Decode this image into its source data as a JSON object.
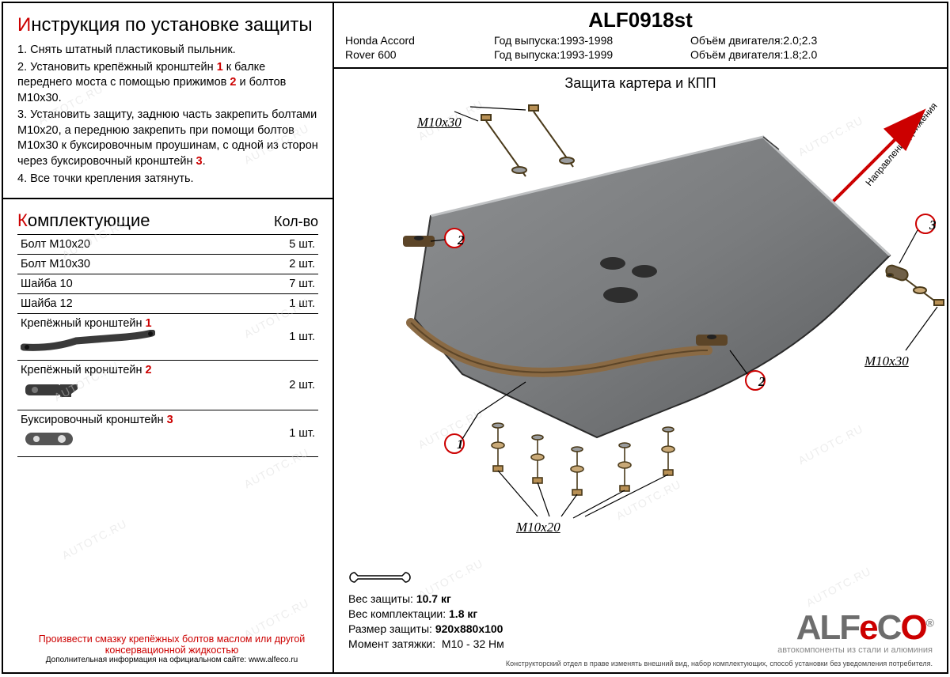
{
  "colors": {
    "accent": "#c00",
    "steel": "#7c7e80",
    "steel_dark": "#5d5f61",
    "bronze": "#8a6a44",
    "border": "#000",
    "watermark": "#d8d8d8",
    "logo_grey": "#6d6d6d",
    "logo_red": "#cc0000"
  },
  "watermark_text": "AUTOTC.RU",
  "instructions": {
    "title_cap": "И",
    "title_rest": "нструкция по установке защиты",
    "steps": [
      {
        "n": "1.",
        "text": "Снять штатный пластиковый пыльник."
      },
      {
        "n": "2.",
        "text": "Установить крепёжный кронштейн {1} к балке переднего моста с помощью прижимов {2} и болтов М10х30."
      },
      {
        "n": "3.",
        "text": "Установить защиту, заднюю часть закрепить болтами М10х20, а переднюю закрепить при помощи болтов М10х30 к буксировочным проушинам, с одной из сторон через буксировочный кронштейн {3}."
      },
      {
        "n": "4.",
        "text": "Все точки крепления затянуть."
      }
    ]
  },
  "parts": {
    "title_cap": "К",
    "title_rest": "омплектующие",
    "qty_header": "Кол-во",
    "rows": [
      {
        "name": "Болт М10х20",
        "qty": "5 шт."
      },
      {
        "name": "Болт М10х30",
        "qty": "2 шт."
      },
      {
        "name": "Шайба 10",
        "qty": "7 шт."
      },
      {
        "name": "Шайба 12",
        "qty": "1 шт."
      }
    ],
    "brackets": [
      {
        "name": "Крепёжный кронштейн",
        "num": "1",
        "qty": "1 шт.",
        "shape": "bar"
      },
      {
        "name": "Крепёжный кронштейн",
        "num": "2",
        "qty": "2 шт.",
        "shape": "clamp"
      },
      {
        "name": "Буксировочный кронштейн",
        "num": "3",
        "qty": "1 шт.",
        "shape": "plate"
      }
    ]
  },
  "footer": {
    "warn": "Произвести смазку крепёжных болтов маслом или другой консервационной жидкостью",
    "info": "Дополнительная информация на официальном сайте: www.alfeco.ru"
  },
  "header": {
    "partno": "ALF0918st",
    "vehicles": [
      {
        "name": "Honda Accord",
        "year_label": "Год выпуска:",
        "year": "1993-1998",
        "eng_label": "Объём двигателя:",
        "eng": "2.0;2.3"
      },
      {
        "name": "Rover 600",
        "year_label": "Год выпуска:",
        "year": "1993-1999",
        "eng_label": "Объём двигателя:",
        "eng": "1.8;2.0"
      }
    ]
  },
  "diagram": {
    "title": "Защита картера и КПП",
    "direction_label": "Направление движения",
    "callouts": {
      "m10x30_top": "М10х30",
      "m10x30_right": "М10х30",
      "m10x20": "М10х20",
      "n1": "1",
      "n2a": "2",
      "n2b": "2",
      "n3": "3"
    }
  },
  "specs": {
    "weight_label": "Вес защиты:",
    "weight": "10.7 кг",
    "kit_label": "Вес комплектации:",
    "kit": "1.8 кг",
    "size_label": "Размер защиты:",
    "size": "920х880х100",
    "torque_label": "Момент затяжки:",
    "torque": "М10 - 32 Нм"
  },
  "logo": {
    "alf": "ALF",
    "e": "e",
    "c": "C",
    "o": "O",
    "reg": "®",
    "sub": "автокомпоненты из стали и алюминия"
  },
  "disclaimer": "Конструкторский отдел в праве изменять внешний вид, набор комплектующих, способ установки без уведомления потребителя."
}
